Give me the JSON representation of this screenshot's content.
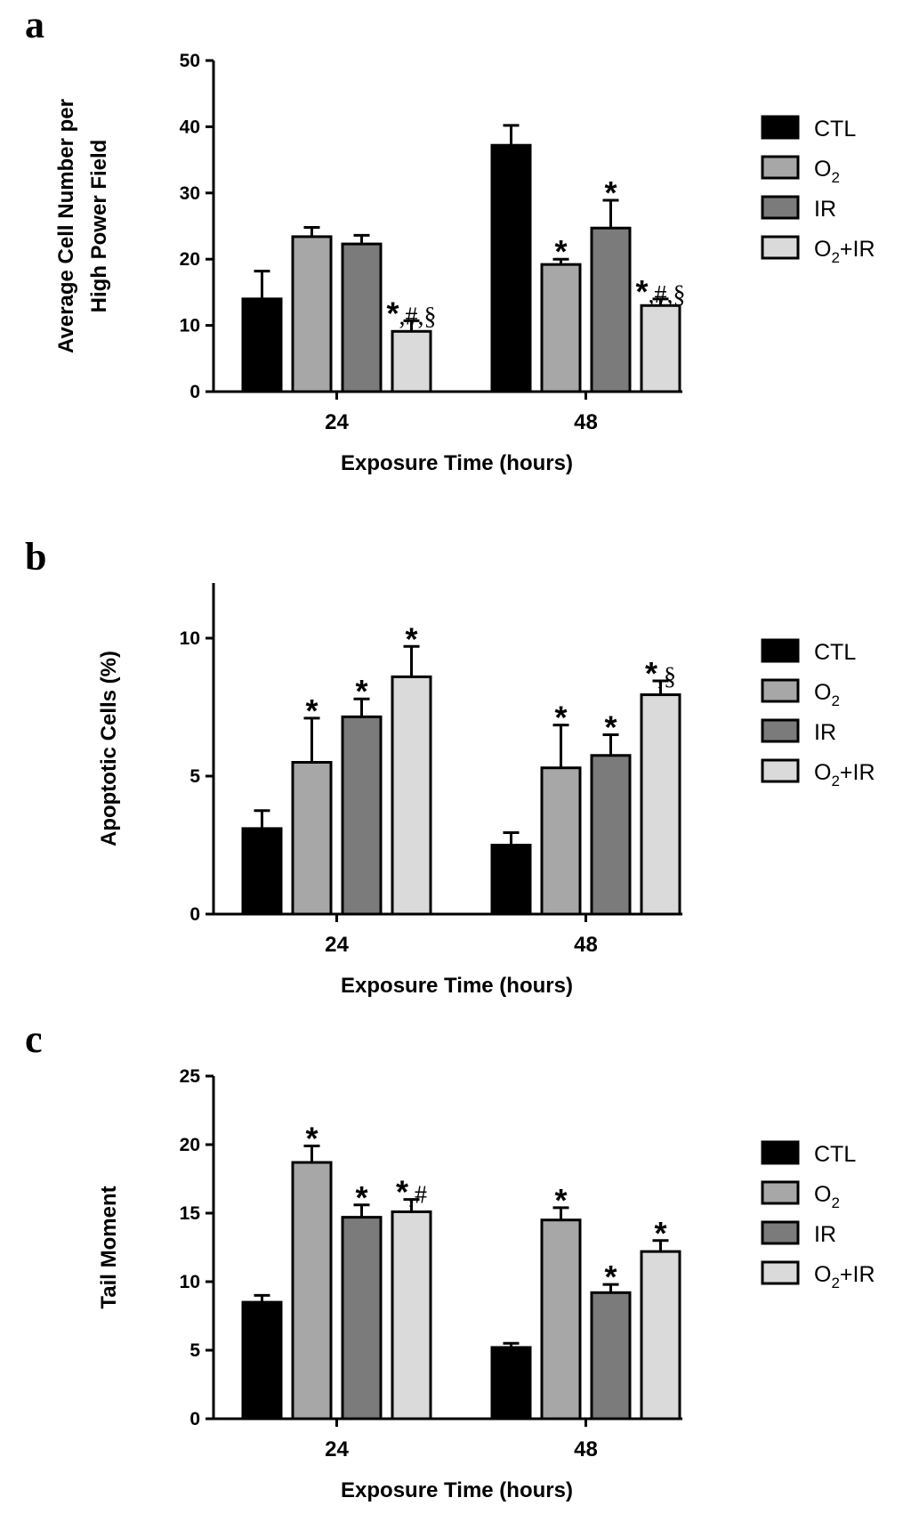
{
  "figure": {
    "series": [
      {
        "name": "CTL",
        "name_main": "CTL",
        "name_sub": "",
        "name_tail": "",
        "color": "#000000"
      },
      {
        "name": "O2",
        "name_main": "O",
        "name_sub": "2",
        "name_tail": "",
        "color": "#a7a7a7"
      },
      {
        "name": "IR",
        "name_main": "IR",
        "name_sub": "",
        "name_tail": "",
        "color": "#7b7b7b"
      },
      {
        "name": "O2+IR",
        "name_main": "O",
        "name_sub": "2",
        "name_tail": "+IR",
        "color": "#dadada"
      }
    ]
  },
  "chart_data": [
    {
      "panel": "a",
      "type": "bar",
      "ylabel_lines": [
        "Average Cell Number per",
        "High Power Field"
      ],
      "xlabel": "Exposure Time (hours)",
      "categories": [
        "24",
        "48"
      ],
      "ylim": [
        0,
        50
      ],
      "yticks": [
        0,
        10,
        20,
        30,
        40,
        50
      ],
      "series": [
        {
          "name": "CTL",
          "values": [
            14,
            37.2
          ],
          "errors": [
            4.2,
            3.0
          ],
          "annotations": [
            "",
            ""
          ]
        },
        {
          "name": "O2",
          "values": [
            23.4,
            19.2
          ],
          "errors": [
            1.4,
            0.8
          ],
          "annotations": [
            "",
            "*"
          ]
        },
        {
          "name": "IR",
          "values": [
            22.3,
            24.7
          ],
          "errors": [
            1.3,
            4.2
          ],
          "annotations": [
            "",
            "*"
          ]
        },
        {
          "name": "O2+IR",
          "values": [
            9.1,
            13
          ],
          "errors": [
            1.6,
            1.0
          ],
          "annotations": [
            "*,#,§",
            "*,#,§"
          ]
        }
      ]
    },
    {
      "panel": "b",
      "type": "bar",
      "ylabel_lines": [
        "Apoptotic Cells (%)"
      ],
      "xlabel": "Exposure Time (hours)",
      "categories": [
        "24",
        "48"
      ],
      "ylim": [
        0,
        12
      ],
      "yticks": [
        0,
        5,
        10
      ],
      "series": [
        {
          "name": "CTL",
          "values": [
            3.1,
            2.5
          ],
          "errors": [
            0.65,
            0.45
          ],
          "annotations": [
            "",
            ""
          ]
        },
        {
          "name": "O2",
          "values": [
            5.5,
            5.3
          ],
          "errors": [
            1.6,
            1.55
          ],
          "annotations": [
            "*",
            "*"
          ]
        },
        {
          "name": "IR",
          "values": [
            7.15,
            5.75
          ],
          "errors": [
            0.65,
            0.75
          ],
          "annotations": [
            "*",
            "*"
          ]
        },
        {
          "name": "O2+IR",
          "values": [
            8.6,
            7.95
          ],
          "errors": [
            1.1,
            0.5
          ],
          "annotations": [
            "*",
            "*,§"
          ]
        }
      ]
    },
    {
      "panel": "c",
      "type": "bar",
      "ylabel_lines": [
        "Tail Moment"
      ],
      "xlabel": "Exposure Time (hours)",
      "categories": [
        "24",
        "48"
      ],
      "ylim": [
        0,
        25
      ],
      "yticks": [
        0,
        5,
        10,
        15,
        20,
        25
      ],
      "series": [
        {
          "name": "CTL",
          "values": [
            8.5,
            5.2
          ],
          "errors": [
            0.5,
            0.3
          ],
          "annotations": [
            "",
            ""
          ]
        },
        {
          "name": "O2",
          "values": [
            18.7,
            14.5
          ],
          "errors": [
            1.2,
            0.9
          ],
          "annotations": [
            "*",
            "*"
          ]
        },
        {
          "name": "IR",
          "values": [
            14.7,
            9.2
          ],
          "errors": [
            0.9,
            0.6
          ],
          "annotations": [
            "*",
            "*"
          ]
        },
        {
          "name": "O2+IR",
          "values": [
            15.1,
            12.2
          ],
          "errors": [
            0.9,
            0.8
          ],
          "annotations": [
            "*,#",
            "*"
          ]
        }
      ]
    }
  ]
}
